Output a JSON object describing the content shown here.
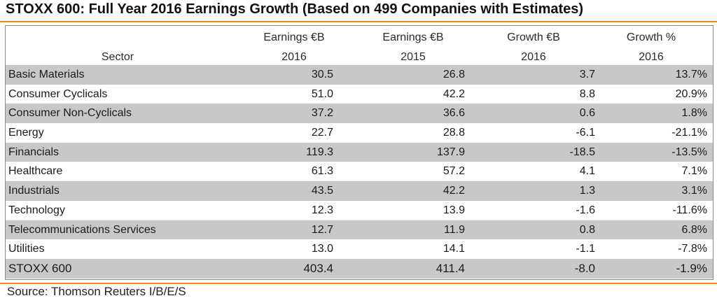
{
  "title": "STOXX 600: Full Year 2016 Earnings Growth (Based on 499 Companies with Estimates)",
  "source": "Source: Thomson Reuters I/B/E/S",
  "colors": {
    "accent_rule": "#f28c00",
    "shaded_row": "#c8c8c8"
  },
  "chart_data": {
    "type": "table",
    "title": "STOXX 600: Full Year 2016 Earnings Growth (Based on 499 Companies with Estimates)",
    "columns": [
      {
        "line1": "",
        "line2": "Sector"
      },
      {
        "line1": "Earnings €B",
        "line2": "2016"
      },
      {
        "line1": "Earnings €B",
        "line2": "2015"
      },
      {
        "line1": "Growth €B",
        "line2": "2016"
      },
      {
        "line1": "Growth %",
        "line2": "2016"
      }
    ],
    "rows": [
      {
        "sector": "Basic Materials",
        "earnings_2016": "30.5",
        "earnings_2015": "26.8",
        "growth_eur_2016": "3.7",
        "growth_pct_2016": "13.7%"
      },
      {
        "sector": "Consumer Cyclicals",
        "earnings_2016": "51.0",
        "earnings_2015": "42.2",
        "growth_eur_2016": "8.8",
        "growth_pct_2016": "20.9%"
      },
      {
        "sector": "Consumer Non-Cyclicals",
        "earnings_2016": "37.2",
        "earnings_2015": "36.6",
        "growth_eur_2016": "0.6",
        "growth_pct_2016": "1.8%"
      },
      {
        "sector": "Energy",
        "earnings_2016": "22.7",
        "earnings_2015": "28.8",
        "growth_eur_2016": "-6.1",
        "growth_pct_2016": "-21.1%"
      },
      {
        "sector": "Financials",
        "earnings_2016": "119.3",
        "earnings_2015": "137.9",
        "growth_eur_2016": "-18.5",
        "growth_pct_2016": "-13.5%"
      },
      {
        "sector": "Healthcare",
        "earnings_2016": "61.3",
        "earnings_2015": "57.2",
        "growth_eur_2016": "4.1",
        "growth_pct_2016": "7.1%"
      },
      {
        "sector": "Industrials",
        "earnings_2016": "43.5",
        "earnings_2015": "42.2",
        "growth_eur_2016": "1.3",
        "growth_pct_2016": "3.1%"
      },
      {
        "sector": "Technology",
        "earnings_2016": "12.3",
        "earnings_2015": "13.9",
        "growth_eur_2016": "-1.6",
        "growth_pct_2016": "-11.6%"
      },
      {
        "sector": "Telecommunications Services",
        "earnings_2016": "12.7",
        "earnings_2015": "11.9",
        "growth_eur_2016": "0.8",
        "growth_pct_2016": "6.8%"
      },
      {
        "sector": "Utilities",
        "earnings_2016": "13.0",
        "earnings_2015": "14.1",
        "growth_eur_2016": "-1.1",
        "growth_pct_2016": "-7.8%"
      },
      {
        "sector": "STOXX 600",
        "earnings_2016": "403.4",
        "earnings_2015": "411.4",
        "growth_eur_2016": "-8.0",
        "growth_pct_2016": "-1.9%",
        "is_total": true
      }
    ]
  }
}
